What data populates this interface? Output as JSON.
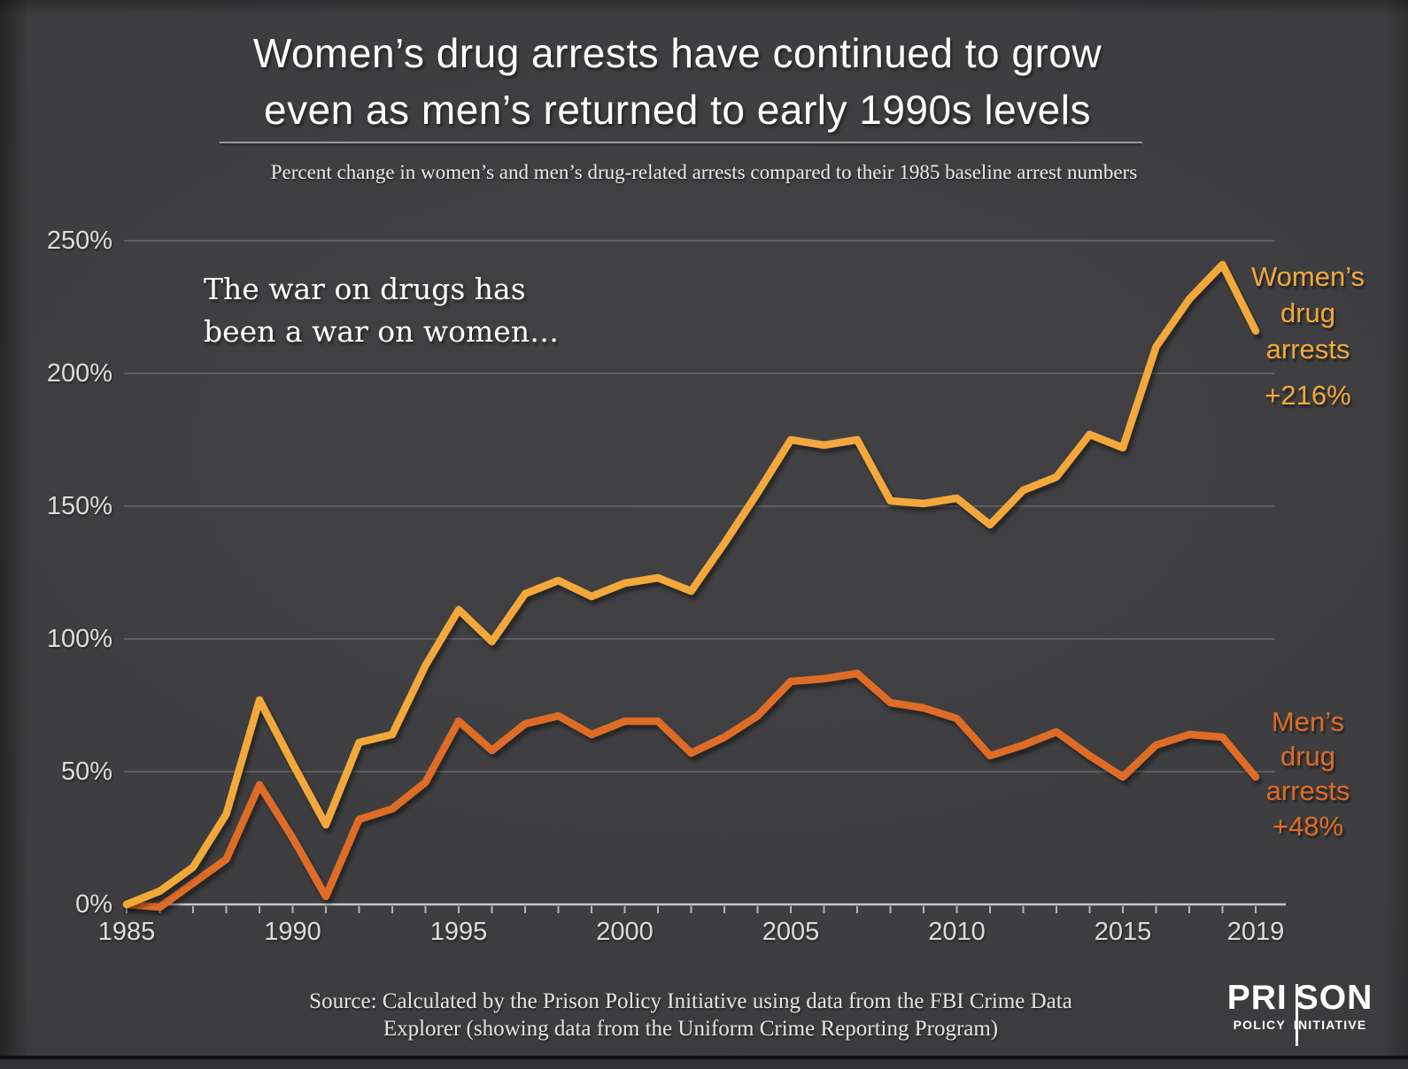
{
  "header": {
    "title_line1": "Women’s drug arrests have continued to grow",
    "title_line2": "even as men’s returned to early 1990s levels",
    "subtitle": "Percent change in women’s and men’s drug-related arrests compared to their 1985 baseline arrest numbers"
  },
  "annotation": {
    "line1": "The war on drugs has",
    "line2": "been a war on women…"
  },
  "series_labels": {
    "women": {
      "lines": [
        "Women’s",
        "drug",
        "arrests"
      ],
      "value": "+216%"
    },
    "men": {
      "lines": [
        "Men’s",
        "drug",
        "arrests"
      ],
      "value": "+48%"
    }
  },
  "source": {
    "line1": "Source: Calculated by the Prison Policy Initiative using data from the FBI Crime Data",
    "line2": "Explorer (showing data from the Uniform Crime Reporting Program)"
  },
  "logo": {
    "prison_left": "PRI",
    "prison_right": "SON",
    "policy": "POLICY",
    "initiative": "INITIATIVE"
  },
  "colors": {
    "background": "#3D3D3F",
    "women_line": "#F3A83B",
    "men_line": "#DE6C26",
    "gridline": "#69696B",
    "axis": "#C6C6C8",
    "text": "#FFFFFF"
  },
  "chart_data": {
    "type": "line",
    "title": "Women’s drug arrests have continued to grow even as men’s returned to early 1990s levels",
    "subtitle": "Percent change in women’s and men’s drug-related arrests compared to their 1985 baseline arrest numbers",
    "x": [
      1985,
      1986,
      1987,
      1988,
      1989,
      1990,
      1991,
      1992,
      1993,
      1994,
      1995,
      1996,
      1997,
      1998,
      1999,
      2000,
      2001,
      2002,
      2003,
      2004,
      2005,
      2006,
      2007,
      2008,
      2009,
      2010,
      2011,
      2012,
      2013,
      2014,
      2015,
      2016,
      2017,
      2018,
      2019
    ],
    "series": [
      {
        "name": "Women’s drug arrests",
        "end_label": "+216%",
        "color": "#F3A83B",
        "values": [
          0,
          5,
          14,
          34,
          77,
          53,
          30,
          61,
          64,
          90,
          111,
          99,
          117,
          122,
          116,
          121,
          123,
          118,
          136,
          155,
          175,
          173,
          175,
          152,
          151,
          153,
          143,
          156,
          161,
          177,
          172,
          210,
          228,
          241,
          216
        ]
      },
      {
        "name": "Men’s drug arrests",
        "end_label": "+48%",
        "color": "#DE6C26",
        "values": [
          0,
          -1,
          8,
          17,
          45,
          25,
          3,
          32,
          36,
          46,
          69,
          58,
          68,
          71,
          64,
          69,
          69,
          57,
          63,
          71,
          84,
          85,
          87,
          76,
          74,
          70,
          56,
          60,
          65,
          56,
          48,
          60,
          64,
          63,
          48
        ]
      }
    ],
    "y_tick_labels": [
      "250%",
      "200%",
      "150%",
      "100%",
      "50%",
      "0%"
    ],
    "x_tick_years": [
      1985,
      1990,
      1995,
      2000,
      2005,
      2010,
      2015,
      2019
    ],
    "ylim": [
      0,
      250
    ],
    "xlim": [
      1985,
      2019
    ],
    "grid": true,
    "legend_position": "right-inline",
    "unit": "percent change vs 1985"
  }
}
